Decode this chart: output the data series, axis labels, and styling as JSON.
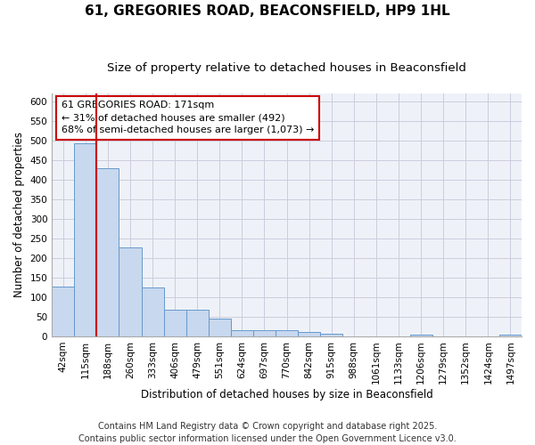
{
  "title": "61, GREGORIES ROAD, BEACONSFIELD, HP9 1HL",
  "subtitle": "Size of property relative to detached houses in Beaconsfield",
  "xlabel": "Distribution of detached houses by size in Beaconsfield",
  "ylabel": "Number of detached properties",
  "bin_labels": [
    "42sqm",
    "115sqm",
    "188sqm",
    "260sqm",
    "333sqm",
    "406sqm",
    "479sqm",
    "551sqm",
    "624sqm",
    "697sqm",
    "770sqm",
    "842sqm",
    "915sqm",
    "988sqm",
    "1061sqm",
    "1133sqm",
    "1206sqm",
    "1279sqm",
    "1352sqm",
    "1424sqm",
    "1497sqm"
  ],
  "bar_values": [
    128,
    492,
    430,
    228,
    124,
    67,
    67,
    44,
    16,
    16,
    16,
    12,
    6,
    0,
    0,
    0,
    5,
    0,
    0,
    0,
    4
  ],
  "bar_color": "#c8d8ee",
  "bar_edge_color": "#6699cc",
  "property_line_x": 2,
  "property_line_color": "#cc0000",
  "annotation_text": "61 GREGORIES ROAD: 171sqm\n← 31% of detached houses are smaller (492)\n68% of semi-detached houses are larger (1,073) →",
  "annotation_box_color": "#ffffff",
  "annotation_box_edge": "#cc0000",
  "ylim": [
    0,
    620
  ],
  "yticks": [
    0,
    50,
    100,
    150,
    200,
    250,
    300,
    350,
    400,
    450,
    500,
    550,
    600
  ],
  "grid_color": "#ccccdd",
  "background_color": "#eef2f8",
  "plot_bg": "#f4f7fb",
  "footer": "Contains HM Land Registry data © Crown copyright and database right 2025.\nContains public sector information licensed under the Open Government Licence v3.0.",
  "title_fontsize": 11,
  "subtitle_fontsize": 9.5,
  "axis_label_fontsize": 8.5,
  "tick_fontsize": 7.5,
  "annotation_fontsize": 8,
  "footer_fontsize": 7
}
